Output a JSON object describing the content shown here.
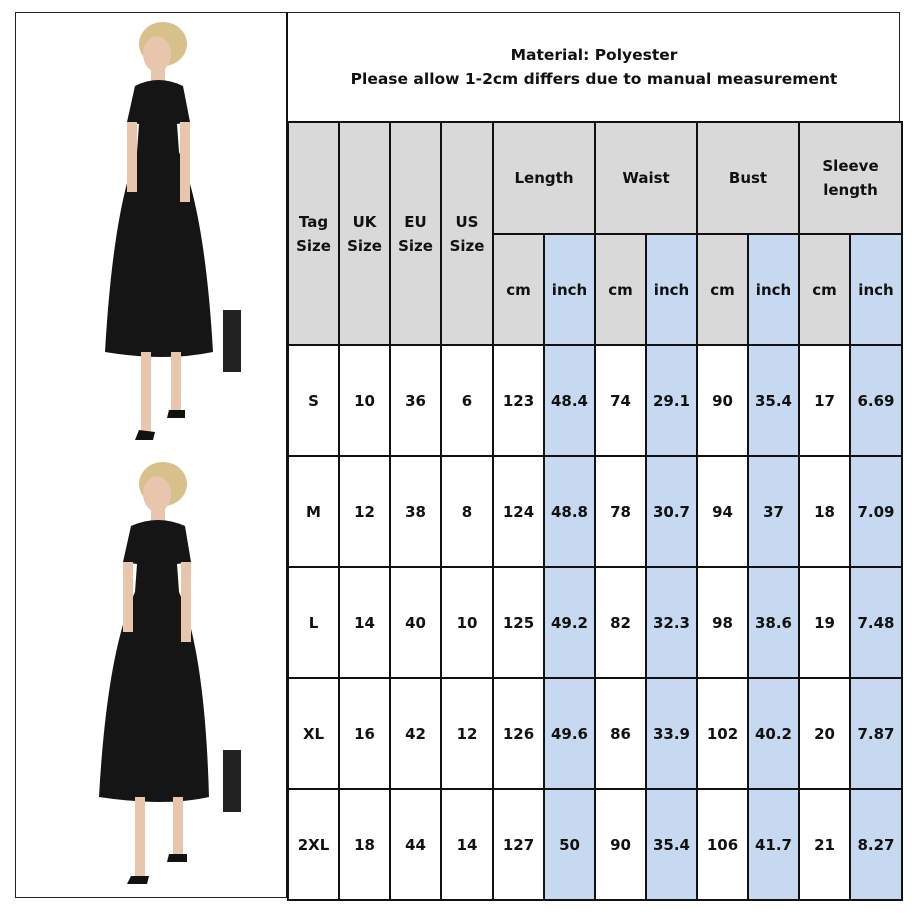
{
  "header": {
    "material": "Material: Polyester",
    "note": "Please allow 1-2cm differs due to manual measurement"
  },
  "columns": {
    "tag": [
      "Tag",
      "Size"
    ],
    "uk": [
      "UK",
      "Size"
    ],
    "eu": [
      "EU",
      "Size"
    ],
    "us": [
      "US",
      "Size"
    ],
    "groups": [
      "Length",
      "Waist",
      "Bust",
      "Sleeve length"
    ],
    "units": [
      "cm",
      "inch"
    ]
  },
  "rows": [
    [
      "S",
      "10",
      "36",
      "6",
      "123",
      "48.4",
      "74",
      "29.1",
      "90",
      "35.4",
      "17",
      "6.69"
    ],
    [
      "M",
      "12",
      "38",
      "8",
      "124",
      "48.8",
      "78",
      "30.7",
      "94",
      "37",
      "18",
      "7.09"
    ],
    [
      "L",
      "14",
      "40",
      "10",
      "125",
      "49.2",
      "82",
      "32.3",
      "98",
      "38.6",
      "19",
      "7.48"
    ],
    [
      "XL",
      "16",
      "42",
      "12",
      "126",
      "49.6",
      "86",
      "33.9",
      "102",
      "40.2",
      "20",
      "7.87"
    ],
    [
      "2XL",
      "18",
      "44",
      "14",
      "127",
      "50",
      "90",
      "35.4",
      "106",
      "41.7",
      "21",
      "8.27"
    ]
  ],
  "colors": {
    "header_bg": "#d9d9d9",
    "inch_bg": "#c6d9f0",
    "border": "#111111"
  },
  "images": [
    "model-photo-black-midi-dress",
    "model-photo-black-midi-dress"
  ]
}
